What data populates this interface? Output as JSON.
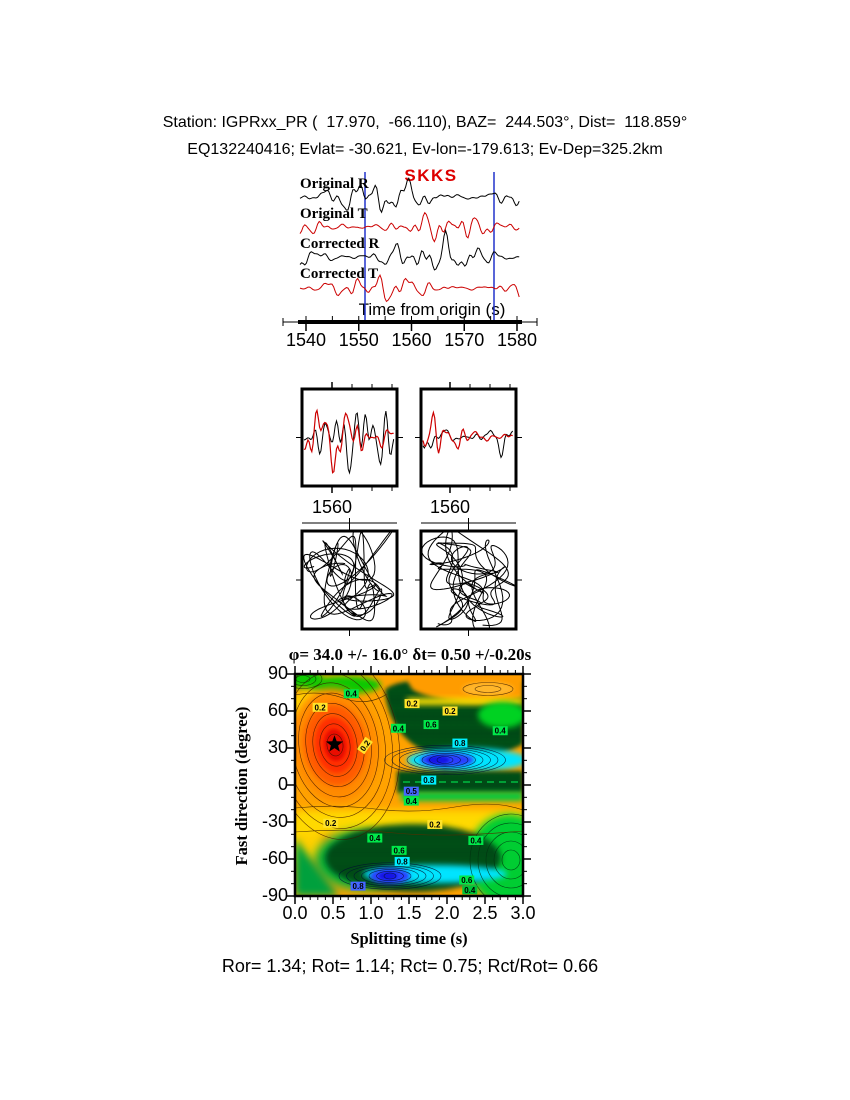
{
  "header": {
    "line1": "Station: IGPRxx_PR (  17.970,  -66.110), BAZ=  244.503°, Dist=  118.859°",
    "line2": "EQ132240416; Evlat= -30.621, Ev-lon=-179.613; Ev-Dep=325.2km"
  },
  "seismogram_panel": {
    "phase_label": "SKKS",
    "phase_color": "#dd0000",
    "axis_label": "Time from origin (s)",
    "window_color": "#2233cc",
    "traces": [
      {
        "label": "Original R",
        "color": "#000000"
      },
      {
        "label": "Original T",
        "color": "#cc0000"
      },
      {
        "label": "Corrected R",
        "color": "#000000"
      },
      {
        "label": "Corrected T",
        "color": "#cc0000"
      }
    ],
    "time_ticks": [
      "1540",
      "1550",
      "1560",
      "1570",
      "1580"
    ]
  },
  "middle_panels": {
    "tick_label": "1560",
    "trace_colors": [
      "#000000",
      "#cc0000"
    ]
  },
  "contour_panel": {
    "title": "φ= 34.0 +/- 16.0° δt= 0.50 +/-0.20s",
    "xlabel": "Splitting time (s)",
    "ylabel": "Fast direction (degree)",
    "x_ticks": [
      "0.0",
      "0.5",
      "1.0",
      "1.5",
      "2.0",
      "2.5",
      "3.0"
    ],
    "y_ticks": [
      "90",
      "60",
      "30",
      "0",
      "-30",
      "-60",
      "-90"
    ],
    "star": {
      "t": 0.52,
      "d": 33
    },
    "label_colors": {
      "yellow": "#ffe32a",
      "green": "#00e84a",
      "cyan": "#00eeff",
      "blue": "#4466ff",
      "darkgreen": "#00c238"
    },
    "labels": [
      {
        "t": 0.74,
        "d": 74,
        "v": "0.4",
        "bg": "green"
      },
      {
        "t": 0.33,
        "d": 63,
        "v": "0.2",
        "bg": "yellow"
      },
      {
        "t": 1.54,
        "d": 66,
        "v": "0.2",
        "bg": "yellow"
      },
      {
        "t": 2.04,
        "d": 60,
        "v": "0.2",
        "bg": "yellow"
      },
      {
        "t": 1.36,
        "d": 46,
        "v": "0.4",
        "bg": "green"
      },
      {
        "t": 1.79,
        "d": 49,
        "v": "0.6",
        "bg": "green"
      },
      {
        "t": 2.17,
        "d": 34,
        "v": "0.8",
        "bg": "cyan"
      },
      {
        "t": 2.7,
        "d": 44,
        "v": "0.4",
        "bg": "green"
      },
      {
        "t": 0.92,
        "d": 32,
        "v": "0.2",
        "bg": "yellow",
        "rot": -55
      },
      {
        "t": 1.76,
        "d": 4,
        "v": "0.8",
        "bg": "cyan"
      },
      {
        "t": 1.53,
        "d": -5,
        "v": "0.5",
        "bg": "blue"
      },
      {
        "t": 1.53,
        "d": -13,
        "v": "0.4",
        "bg": "green"
      },
      {
        "t": 0.47,
        "d": -31,
        "v": "0.2",
        "bg": "yellow"
      },
      {
        "t": 1.84,
        "d": -32,
        "v": "0.2",
        "bg": "yellow"
      },
      {
        "t": 1.05,
        "d": -43,
        "v": "0.4",
        "bg": "green"
      },
      {
        "t": 1.37,
        "d": -53,
        "v": "0.6",
        "bg": "green"
      },
      {
        "t": 1.41,
        "d": -62,
        "v": "0.8",
        "bg": "cyan"
      },
      {
        "t": 0.83,
        "d": -82,
        "v": "0.8",
        "bg": "blue"
      },
      {
        "t": 2.38,
        "d": -45,
        "v": "0.4",
        "bg": "green"
      },
      {
        "t": 2.26,
        "d": -77,
        "v": "0.6",
        "bg": "green"
      },
      {
        "t": 2.3,
        "d": -85,
        "v": "0.4",
        "bg": "darkgreen"
      }
    ]
  },
  "stats_line": "Ror= 1.34; Rot= 1.14; Rct= 0.75; Rct/Rot= 0.66",
  "results": {
    "Ror": 1.34,
    "Rot": 1.14,
    "Rct": 0.75,
    "Rct_over_Rot": 0.66
  },
  "chart_data": [
    {
      "type": "line",
      "panel": "seismograms",
      "series": [
        {
          "name": "Original R"
        },
        {
          "name": "Original T"
        },
        {
          "name": "Corrected R"
        },
        {
          "name": "Corrected T"
        }
      ],
      "xlabel": "Time from origin (s)",
      "x_ticks": [
        1540,
        1550,
        1560,
        1570,
        1580
      ],
      "phase_pick": "SKKS",
      "selection_window_s": [
        1551,
        1576
      ]
    },
    {
      "type": "line",
      "panel": "waveform-overlay-pair",
      "x_ticks": [
        1560
      ],
      "note": "two panels, black and red overlaid waveforms"
    },
    {
      "type": "line",
      "panel": "particle-motion-pair",
      "note": "original and corrected particle motion hodograms"
    },
    {
      "type": "heatmap",
      "panel": "splitting-error-surface",
      "title": "φ= 34.0 +/- 16.0° δt= 0.50 +/-0.20s",
      "xlabel": "Splitting time (s)",
      "ylabel": "Fast direction (degree)",
      "xlim": [
        0,
        3
      ],
      "ylim": [
        -90,
        90
      ],
      "x_ticks": [
        0.0,
        0.5,
        1.0,
        1.5,
        2.0,
        2.5,
        3.0
      ],
      "y_ticks": [
        90,
        60,
        30,
        0,
        -30,
        -60,
        -90
      ],
      "best": {
        "phi_deg": 34.0,
        "phi_err_deg": 16.0,
        "dt_s": 0.5,
        "dt_err_s": 0.2
      },
      "star_at": [
        0.5,
        34
      ],
      "contour_levels_labeled": [
        0.2,
        0.4,
        0.5,
        0.6,
        0.8
      ]
    }
  ]
}
